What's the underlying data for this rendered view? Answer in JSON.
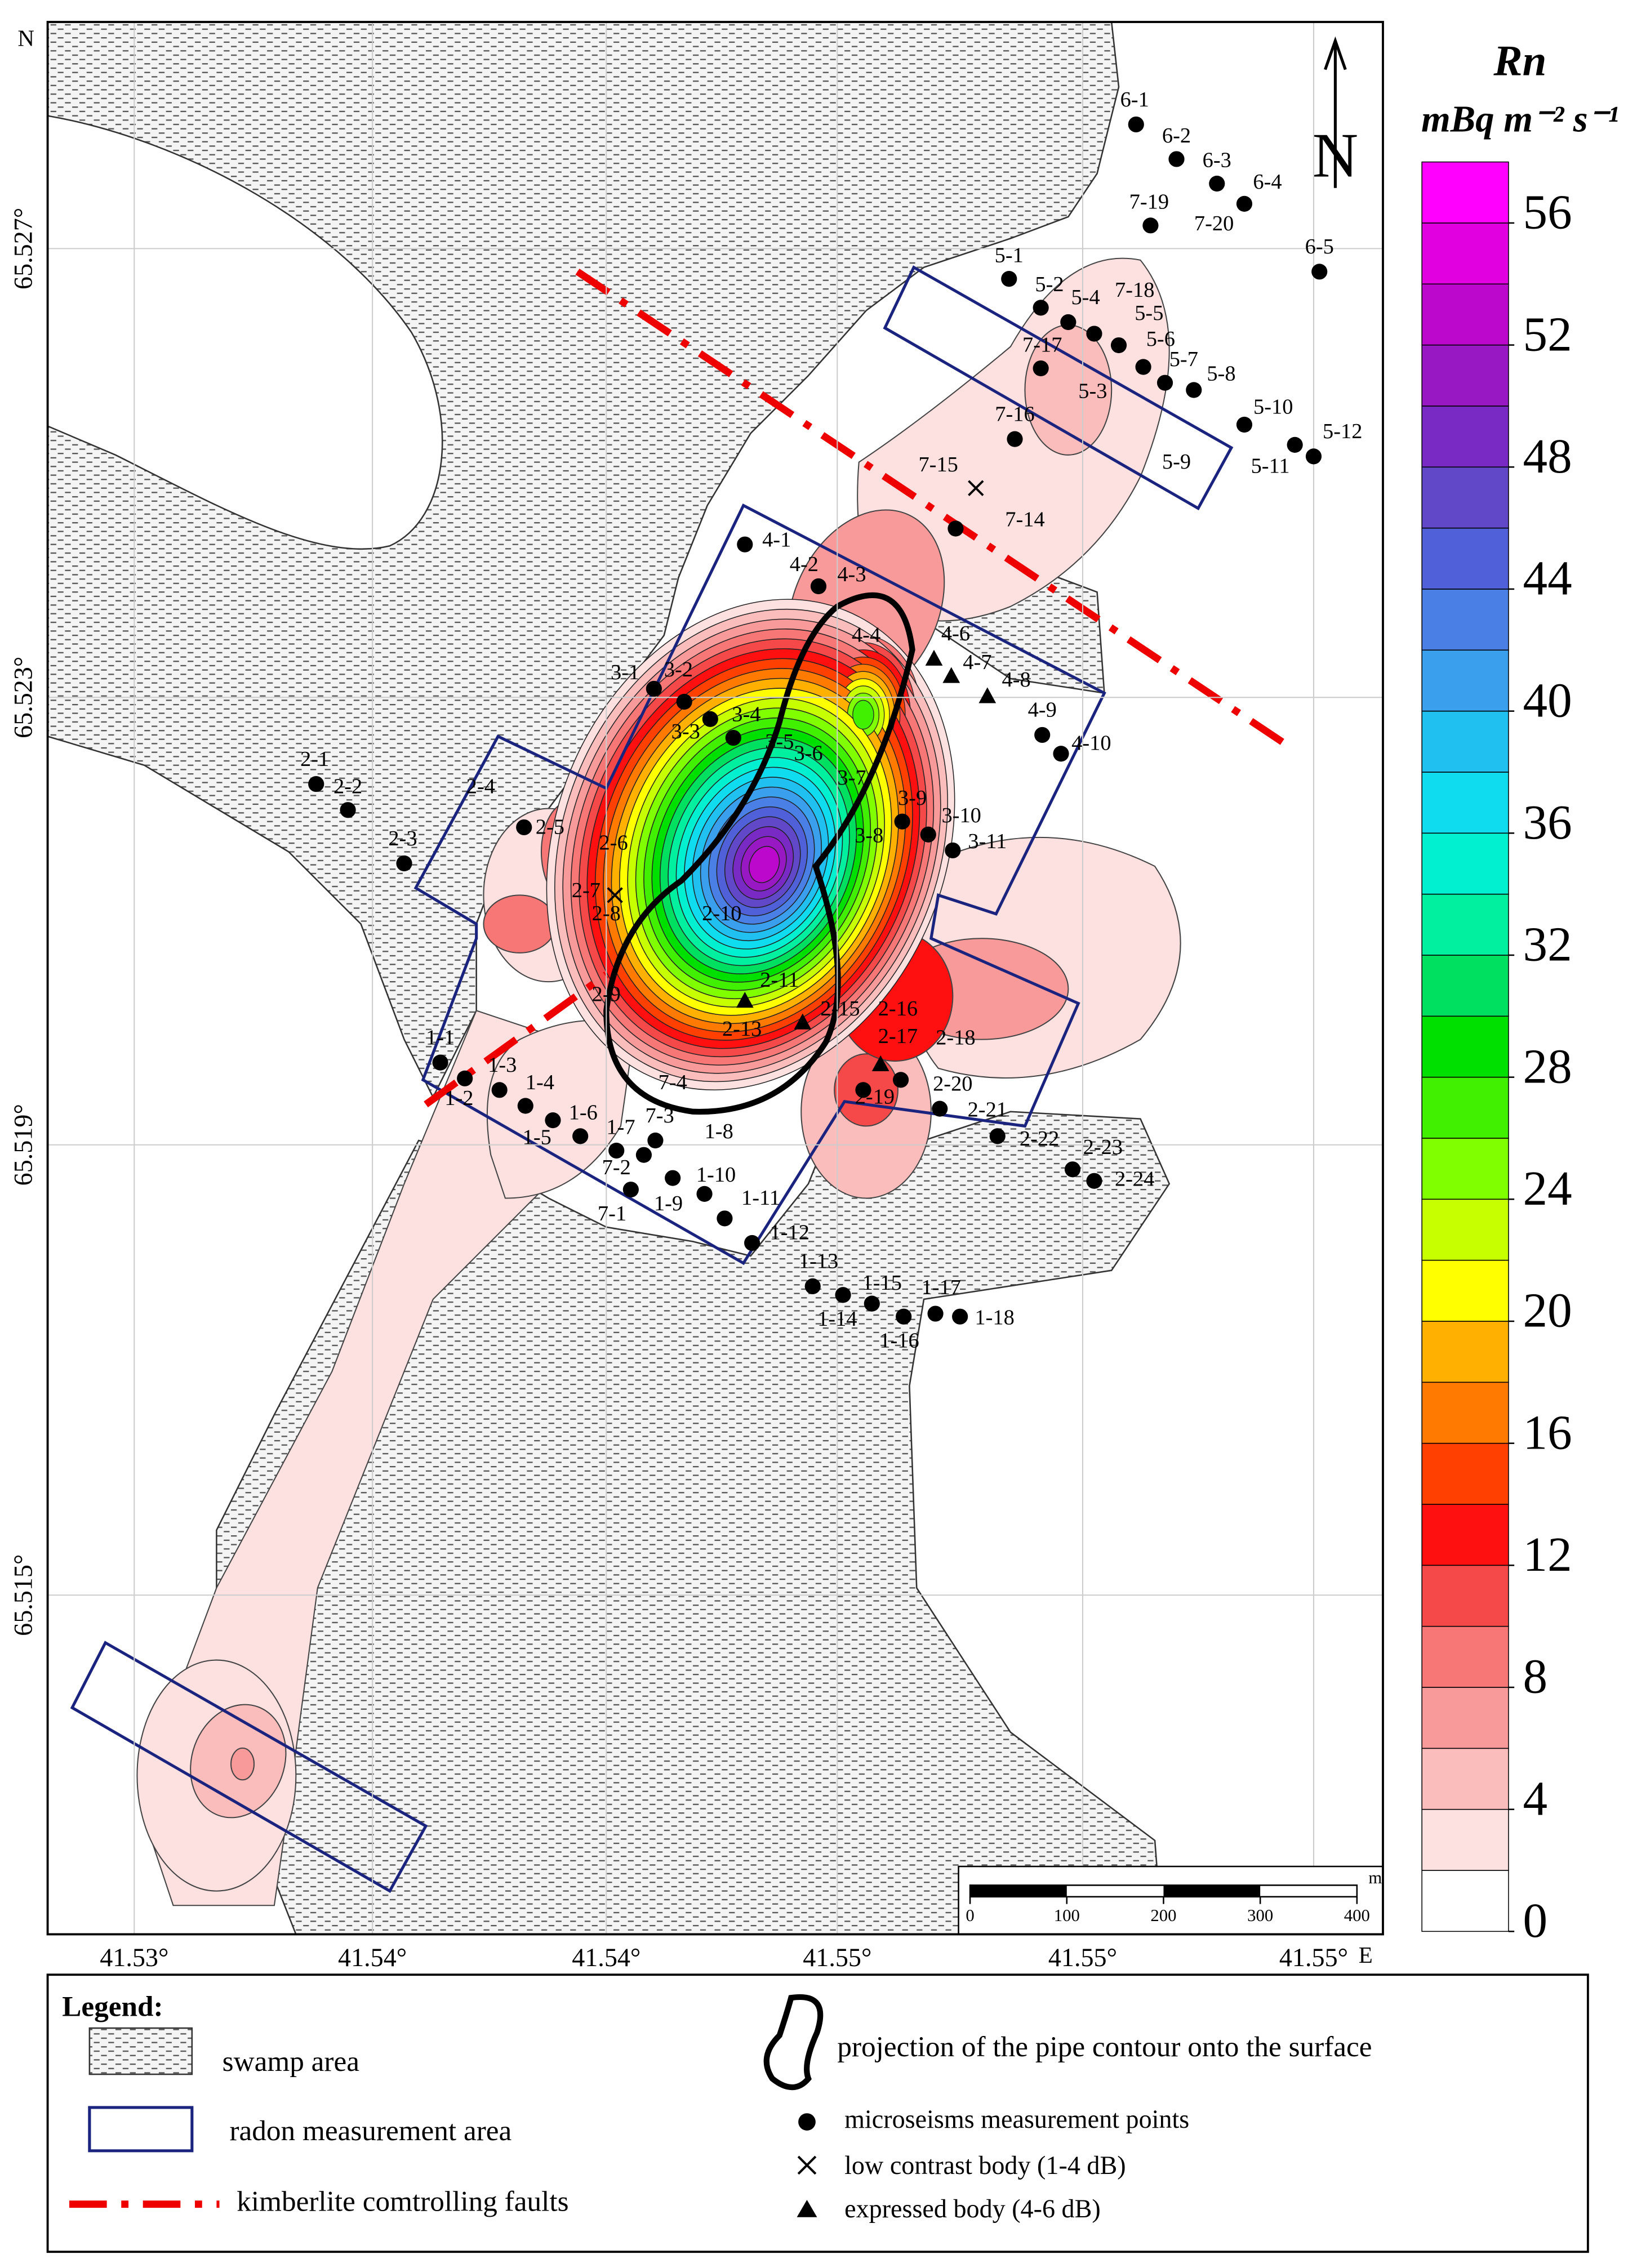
{
  "map": {
    "north": "N",
    "east": "E",
    "compass": "N",
    "lon_labels": [
      "41.53°",
      "41.54°",
      "41.54°",
      "41.55°",
      "41.55°",
      "41.55°"
    ],
    "lat_labels": [
      "65.527°",
      "65.523°",
      "65.519°",
      "65.515°"
    ],
    "points": [
      {
        "label": "6-1",
        "marker": "dot"
      },
      {
        "label": "6-2",
        "marker": "dot"
      },
      {
        "label": "6-3",
        "marker": "dot"
      },
      {
        "label": "6-4",
        "marker": "dot"
      },
      {
        "label": "7-19",
        "marker": "dot"
      },
      {
        "label": "7-20"
      },
      {
        "label": "6-5",
        "marker": "dot"
      },
      {
        "label": "5-1",
        "marker": "dot"
      },
      {
        "label": "5-2",
        "marker": "dot"
      },
      {
        "label": "5-4",
        "marker": "dot"
      },
      {
        "label": "7-18",
        "marker": "dot"
      },
      {
        "label": "5-5",
        "marker": "dot"
      },
      {
        "label": "5-6",
        "marker": "dot"
      },
      {
        "label": "5-7",
        "marker": "dot"
      },
      {
        "label": "5-8",
        "marker": "dot"
      },
      {
        "label": "5-10",
        "marker": "dot"
      },
      {
        "label": "5-12",
        "marker": "dot"
      },
      {
        "label": "5-11",
        "marker": "dot"
      },
      {
        "label": "7-17",
        "marker": "dot"
      },
      {
        "label": "5-3"
      },
      {
        "label": "5-9"
      },
      {
        "label": "7-16",
        "marker": "dot"
      },
      {
        "label": "7-15",
        "marker": "cross"
      },
      {
        "label": "7-14",
        "marker": "dot"
      },
      {
        "label": "4-1",
        "marker": "dot"
      },
      {
        "label": "4-2",
        "marker": "dot"
      },
      {
        "label": "4-3"
      },
      {
        "label": "4-4"
      },
      {
        "label": "4-6",
        "marker": "triangle"
      },
      {
        "label": "4-7",
        "marker": "triangle"
      },
      {
        "label": "4-8",
        "marker": "triangle"
      },
      {
        "label": "4-9",
        "marker": "dot"
      },
      {
        "label": "4-10",
        "marker": "dot"
      },
      {
        "label": "3-1",
        "marker": "dot"
      },
      {
        "label": "3-2",
        "marker": "dot"
      },
      {
        "label": "3-3",
        "marker": "dot"
      },
      {
        "label": "3-4",
        "marker": "dot"
      },
      {
        "label": "3-5"
      },
      {
        "label": "3-6"
      },
      {
        "label": "3-7"
      },
      {
        "label": "3-8"
      },
      {
        "label": "3-9",
        "marker": "dot"
      },
      {
        "label": "3-10",
        "marker": "dot"
      },
      {
        "label": "3-11",
        "marker": "dot"
      },
      {
        "label": "2-1",
        "marker": "dot"
      },
      {
        "label": "2-2",
        "marker": "dot"
      },
      {
        "label": "2-3",
        "marker": "dot"
      },
      {
        "label": "2-4"
      },
      {
        "label": "2-5",
        "marker": "dot"
      },
      {
        "label": "2-6"
      },
      {
        "label": "2-7",
        "marker": "cross"
      },
      {
        "label": "2-8"
      },
      {
        "label": "2-9"
      },
      {
        "label": "2-10"
      },
      {
        "label": "2-11",
        "marker": "triangle"
      },
      {
        "label": "2-13",
        "marker": "triangle"
      },
      {
        "label": "2-15"
      },
      {
        "label": "2-16"
      },
      {
        "label": "2-17",
        "marker": "triangle"
      },
      {
        "label": "2-18"
      },
      {
        "label": "2-19",
        "marker": "dot"
      },
      {
        "label": "2-20",
        "marker": "dot"
      },
      {
        "label": "2-21",
        "marker": "dot"
      },
      {
        "label": "2-22",
        "marker": "dot"
      },
      {
        "label": "2-23",
        "marker": "dot"
      },
      {
        "label": "2-24",
        "marker": "dot"
      },
      {
        "label": "1-1",
        "marker": "dot"
      },
      {
        "label": "1-2",
        "marker": "dot"
      },
      {
        "label": "1-3",
        "marker": "dot"
      },
      {
        "label": "1-4",
        "marker": "dot"
      },
      {
        "label": "1-5",
        "marker": "dot"
      },
      {
        "label": "1-6",
        "marker": "dot"
      },
      {
        "label": "1-7",
        "marker": "dot"
      },
      {
        "label": "7-3",
        "marker": "dot"
      },
      {
        "label": "7-4"
      },
      {
        "label": "1-8"
      },
      {
        "label": "7-2",
        "marker": "dot"
      },
      {
        "label": "7-1",
        "marker": "dot"
      },
      {
        "label": "1-9",
        "marker": "dot"
      },
      {
        "label": "1-10",
        "marker": "dot"
      },
      {
        "label": "1-11",
        "marker": "dot"
      },
      {
        "label": "1-12",
        "marker": "dot"
      },
      {
        "label": "1-13",
        "marker": "dot"
      },
      {
        "label": "1-14",
        "marker": "dot"
      },
      {
        "label": "1-15",
        "marker": "dot"
      },
      {
        "label": "1-16",
        "marker": "dot"
      },
      {
        "label": "1-17",
        "marker": "dot"
      },
      {
        "label": "1-18",
        "marker": "dot"
      }
    ]
  },
  "scale_bar": {
    "unit": "m",
    "ticks": [
      0,
      100,
      200,
      300,
      400
    ]
  },
  "colorbar": {
    "title": "Rn",
    "unit": "mBq m⁻² s⁻¹",
    "range": [
      0,
      58
    ],
    "step": 2,
    "ticks": [
      0,
      4,
      8,
      12,
      16,
      20,
      24,
      28,
      32,
      36,
      40,
      44,
      48,
      52,
      56
    ],
    "colors": [
      "#ffffff",
      "#fde0e0",
      "#fbbcbc",
      "#f99a9a",
      "#f77676",
      "#f54848",
      "#ff1010",
      "#ff4000",
      "#ff7a00",
      "#ffb000",
      "#ffff00",
      "#c8ff00",
      "#80ff00",
      "#40f000",
      "#00e000",
      "#00e060",
      "#00f0a0",
      "#00f0d0",
      "#10dcf0",
      "#20c0f0",
      "#3aa0ee",
      "#4a80e6",
      "#5060d8",
      "#6048c8",
      "#7a2ac4",
      "#9818c4",
      "#bb08cc",
      "#e000e0",
      "#ff00ff"
    ]
  },
  "legend": {
    "title": "Legend:",
    "items": [
      "swamp area",
      "radon measurement area",
      "kimberlite comtrolling faults",
      "projection of the pipe contour onto the surface",
      "microseisms measurement points",
      "low contrast body (1-4 dB)",
      "expressed body (4-6 dB)"
    ]
  }
}
